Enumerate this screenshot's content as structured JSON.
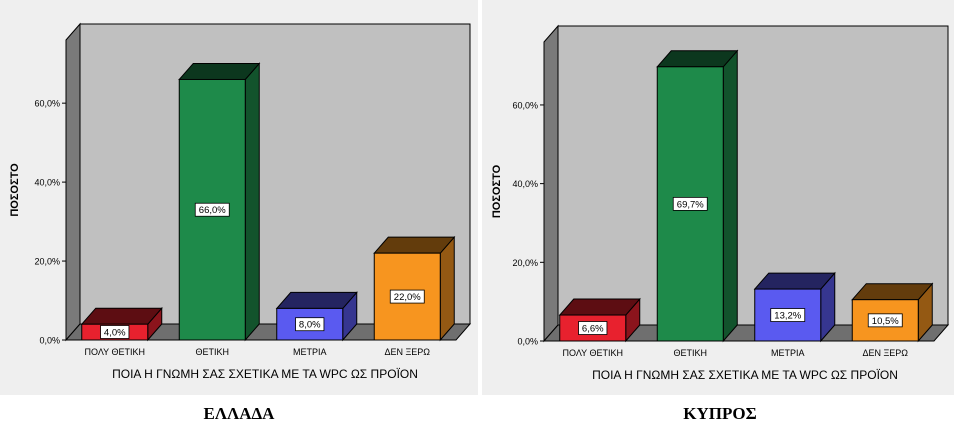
{
  "chart_data": [
    {
      "type": "bar",
      "ylabel": "ΠΟΣΟΣΤΟ",
      "xlabel": "ΠΟΙΑ Η ΓΝΩΜΗ ΣΑΣ ΣΧΕΤΙΚΑ ΜΕ ΤΑ WPC ΩΣ ΠΡΟΪΟΝ",
      "caption": "ΕΛΛΑΔΑ",
      "categories": [
        "ΠΟΛΥ ΘΕΤΙΚΗ",
        "ΘΕΤΙΚΗ",
        "ΜΕΤΡΙΑ",
        "ΔΕΝ ΞΕΡΩ"
      ],
      "values": [
        4.0,
        66.0,
        8.0,
        22.0
      ],
      "data_labels": [
        "4,0%",
        "66,0%",
        "8,0%",
        "22,0%"
      ],
      "colors": [
        "#e8212e",
        "#1e8a4a",
        "#5a5af0",
        "#f7951f"
      ],
      "y_ticks": [
        0,
        20,
        40,
        60
      ],
      "y_tick_labels": [
        "0,0%",
        "20,0%",
        "40,0%",
        "60,0%"
      ],
      "ylim": [
        0,
        76
      ],
      "grid": false,
      "legend": "none"
    },
    {
      "type": "bar",
      "ylabel": "ΠΟΣΟΣΤΟ",
      "xlabel": "ΠΟΙΑ Η ΓΝΩΜΗ ΣΑΣ ΣΧΕΤΙΚΑ ΜΕ ΤΑ WPC ΩΣ ΠΡΟΪΟΝ",
      "caption": "ΚΥΠΡΟΣ",
      "categories": [
        "ΠΟΛΥ ΘΕΤΙΚΗ",
        "ΘΕΤΙΚΗ",
        "ΜΕΤΡΙΑ",
        "ΔΕΝ ΞΕΡΩ"
      ],
      "values": [
        6.6,
        69.7,
        13.2,
        10.5
      ],
      "data_labels": [
        "6,6%",
        "69,7%",
        "13,2%",
        "10,5%"
      ],
      "colors": [
        "#e8212e",
        "#1e8a4a",
        "#5a5af0",
        "#f7951f"
      ],
      "y_ticks": [
        0,
        20,
        40,
        60
      ],
      "y_tick_labels": [
        "0,0%",
        "20,0%",
        "40,0%",
        "60,0%"
      ],
      "ylim": [
        0,
        76
      ],
      "grid": false,
      "legend": "none"
    }
  ]
}
